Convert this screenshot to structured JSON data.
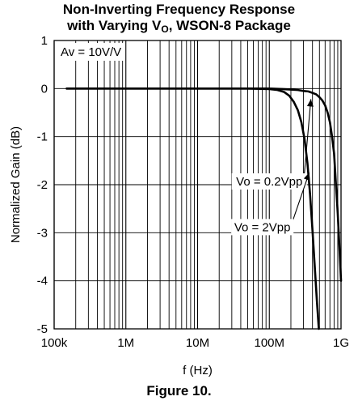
{
  "title_line1": "Non-Inverting Frequency Response",
  "title_line2_main": "with Varying V",
  "title_line2_sub": "O",
  "title_line2_rest": ", WSON-8 Package",
  "figure_caption": "Figure 10.",
  "chart_data": {
    "type": "line",
    "xlabel": "f (Hz)",
    "ylabel": "Normalized Gain (dB)",
    "xscale": "log",
    "xlim": [
      100000,
      1000000000
    ],
    "ylim": [
      -5,
      1
    ],
    "xticks": [
      100000,
      1000000,
      10000000,
      100000000,
      1000000000
    ],
    "xtick_labels": [
      "100k",
      "1M",
      "10M",
      "100M",
      "1G"
    ],
    "yticks": [
      1,
      0,
      -1,
      -2,
      -3,
      -4,
      -5
    ],
    "ytick_labels": [
      "1",
      "0",
      "-1",
      "-2",
      "-3",
      "-4",
      "-5"
    ],
    "grid": true,
    "gain_label": "Av = 10V/V",
    "series": [
      {
        "name": "Vo = 0.2Vpp",
        "x": [
          150000,
          1000000,
          10000000,
          50000000,
          100000000,
          150000000,
          200000000,
          250000000,
          300000000,
          350000000,
          400000000,
          450000000,
          500000000,
          550000000,
          600000000,
          650000000,
          700000000,
          750000000,
          800000000,
          850000000,
          900000000,
          950000000,
          1000000000
        ],
        "y": [
          0,
          0,
          0,
          0,
          0,
          -0.01,
          -0.02,
          -0.03,
          -0.05,
          -0.06,
          -0.09,
          -0.12,
          -0.18,
          -0.25,
          -0.35,
          -0.5,
          -0.7,
          -1.0,
          -1.35,
          -2.0,
          -2.6,
          -3.3,
          -4.0
        ]
      },
      {
        "name": "Vo = 2Vpp",
        "x": [
          150000,
          1000000,
          10000000,
          50000000,
          100000000,
          130000000,
          160000000,
          190000000,
          220000000,
          250000000,
          280000000,
          310000000,
          340000000,
          370000000,
          400000000,
          430000000,
          460000000,
          490000000
        ],
        "y": [
          0,
          0,
          0,
          0,
          -0.01,
          -0.03,
          -0.07,
          -0.15,
          -0.28,
          -0.45,
          -0.7,
          -1.05,
          -1.55,
          -2.2,
          -2.95,
          -3.7,
          -4.4,
          -5.0
        ]
      }
    ],
    "annotations": [
      {
        "text": "Vo = 0.2Vpp",
        "series": 0,
        "target": [
          380000000,
          -0.22
        ],
        "label_at": [
          100000000,
          -2.0
        ]
      },
      {
        "text": "Vo = 2Vpp",
        "series": 1,
        "target": [
          360000000,
          -1.75
        ],
        "label_at": [
          80000000,
          -2.95
        ]
      }
    ],
    "colors": {
      "series": "#000000",
      "grid": "#000000",
      "background": "#ffffff"
    }
  }
}
